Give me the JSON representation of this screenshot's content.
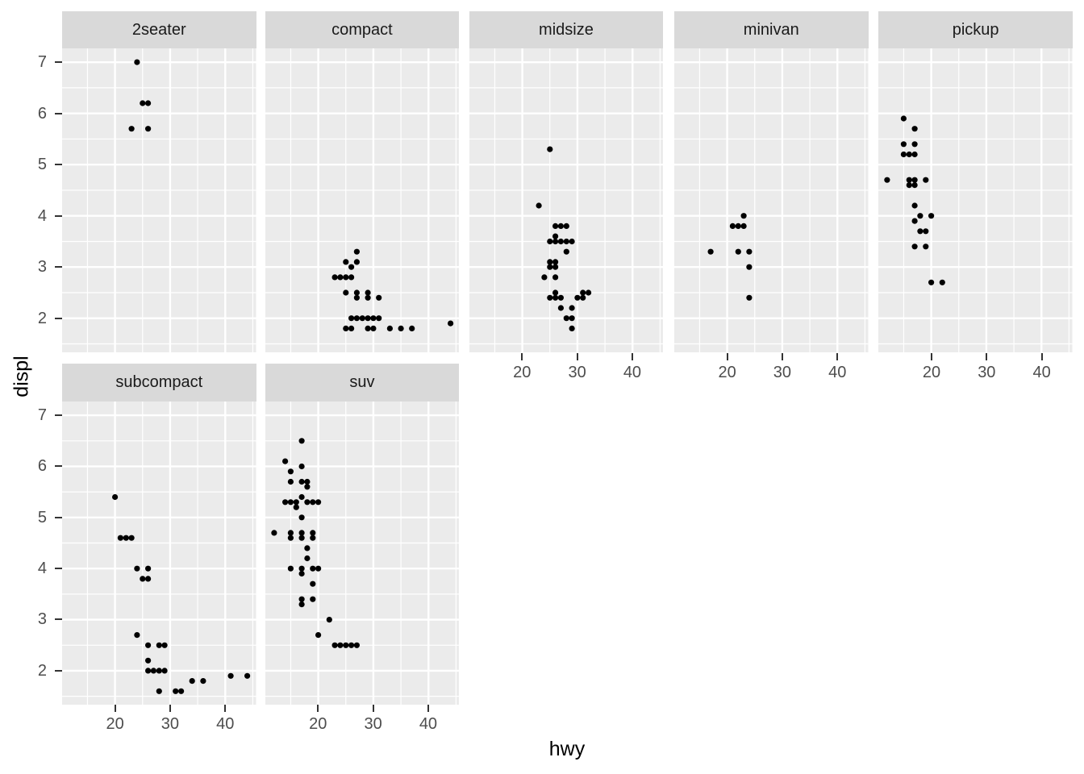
{
  "chart_data": {
    "type": "scatter",
    "title": "",
    "x_variable": "hwy",
    "y_variable": "displ",
    "facet_variable": "class",
    "xlabel": "hwy",
    "ylabel": "displ",
    "x_ticks": [
      20,
      30,
      40
    ],
    "x_minor_ticks": [
      15,
      25,
      35,
      45
    ],
    "y_ticks": [
      7,
      6,
      5,
      4,
      3,
      2
    ],
    "y_minor_ticks": [
      1.5,
      2.5,
      3.5,
      4.5,
      5.5,
      6.5
    ],
    "xlim": [
      10.4,
      45.6
    ],
    "ylim": [
      1.33,
      7.27
    ],
    "grid": "white major and minor gridlines on grey panel",
    "legend": "none",
    "point_radius": 3.6,
    "facets": [
      {
        "label": "2seater",
        "points": [
          [
            24,
            7.0
          ],
          [
            25,
            6.2
          ],
          [
            26,
            6.2
          ],
          [
            23,
            5.7
          ],
          [
            26,
            5.7
          ]
        ]
      },
      {
        "label": "compact",
        "points": [
          [
            27,
            3.3
          ],
          [
            25,
            3.1
          ],
          [
            27,
            3.1
          ],
          [
            26,
            3.0
          ],
          [
            23,
            2.8
          ],
          [
            24,
            2.8
          ],
          [
            25,
            2.8
          ],
          [
            26,
            2.8
          ],
          [
            25,
            2.5
          ],
          [
            27,
            2.5
          ],
          [
            29,
            2.5
          ],
          [
            27,
            2.4
          ],
          [
            29,
            2.4
          ],
          [
            31,
            2.4
          ],
          [
            26,
            2.0
          ],
          [
            27,
            2.0
          ],
          [
            28,
            2.0
          ],
          [
            29,
            2.0
          ],
          [
            30,
            2.0
          ],
          [
            31,
            2.0
          ],
          [
            25,
            1.8
          ],
          [
            26,
            1.8
          ],
          [
            29,
            1.8
          ],
          [
            30,
            1.8
          ],
          [
            33,
            1.8
          ],
          [
            35,
            1.8
          ],
          [
            37,
            1.8
          ],
          [
            44,
            1.9
          ]
        ]
      },
      {
        "label": "midsize",
        "points": [
          [
            25,
            5.3
          ],
          [
            23,
            4.2
          ],
          [
            26,
            3.8
          ],
          [
            27,
            3.8
          ],
          [
            28,
            3.8
          ],
          [
            26,
            3.6
          ],
          [
            25,
            3.5
          ],
          [
            26,
            3.5
          ],
          [
            27,
            3.5
          ],
          [
            28,
            3.5
          ],
          [
            29,
            3.5
          ],
          [
            28,
            3.3
          ],
          [
            25,
            3.1
          ],
          [
            26,
            3.1
          ],
          [
            25,
            3.0
          ],
          [
            26,
            3.0
          ],
          [
            24,
            2.8
          ],
          [
            26,
            2.8
          ],
          [
            26,
            2.5
          ],
          [
            25,
            2.4
          ],
          [
            26,
            2.4
          ],
          [
            27,
            2.4
          ],
          [
            31,
            2.5
          ],
          [
            32,
            2.5
          ],
          [
            30,
            2.4
          ],
          [
            31,
            2.4
          ],
          [
            27,
            2.2
          ],
          [
            29,
            2.2
          ],
          [
            28,
            2.0
          ],
          [
            29,
            2.0
          ],
          [
            29,
            1.8
          ]
        ]
      },
      {
        "label": "minivan",
        "points": [
          [
            23,
            4.0
          ],
          [
            21,
            3.8
          ],
          [
            22,
            3.8
          ],
          [
            23,
            3.8
          ],
          [
            17,
            3.3
          ],
          [
            22,
            3.3
          ],
          [
            24,
            3.3
          ],
          [
            24,
            3.0
          ],
          [
            24,
            2.4
          ]
        ]
      },
      {
        "label": "pickup",
        "points": [
          [
            15,
            5.9
          ],
          [
            17,
            5.7
          ],
          [
            15,
            5.4
          ],
          [
            17,
            5.4
          ],
          [
            15,
            5.2
          ],
          [
            16,
            5.2
          ],
          [
            17,
            5.2
          ],
          [
            12,
            4.7
          ],
          [
            16,
            4.7
          ],
          [
            17,
            4.7
          ],
          [
            19,
            4.7
          ],
          [
            16,
            4.6
          ],
          [
            17,
            4.6
          ],
          [
            17,
            4.2
          ],
          [
            18,
            4.0
          ],
          [
            20,
            4.0
          ],
          [
            17,
            3.9
          ],
          [
            18,
            3.7
          ],
          [
            19,
            3.7
          ],
          [
            17,
            3.4
          ],
          [
            19,
            3.4
          ],
          [
            20,
            2.7
          ],
          [
            22,
            2.7
          ]
        ]
      },
      {
        "label": "subcompact",
        "points": [
          [
            20,
            5.4
          ],
          [
            21,
            4.6
          ],
          [
            22,
            4.6
          ],
          [
            23,
            4.6
          ],
          [
            24,
            4.0
          ],
          [
            26,
            4.0
          ],
          [
            25,
            3.8
          ],
          [
            26,
            3.8
          ],
          [
            24,
            2.7
          ],
          [
            26,
            2.5
          ],
          [
            28,
            2.5
          ],
          [
            29,
            2.5
          ],
          [
            26,
            2.2
          ],
          [
            26,
            2.0
          ],
          [
            27,
            2.0
          ],
          [
            28,
            2.0
          ],
          [
            29,
            2.0
          ],
          [
            34,
            1.8
          ],
          [
            36,
            1.8
          ],
          [
            41,
            1.9
          ],
          [
            44,
            1.9
          ],
          [
            28,
            1.6
          ],
          [
            31,
            1.6
          ],
          [
            32,
            1.6
          ]
        ]
      },
      {
        "label": "suv",
        "points": [
          [
            17,
            6.5
          ],
          [
            14,
            6.1
          ],
          [
            17,
            6.0
          ],
          [
            15,
            5.9
          ],
          [
            15,
            5.7
          ],
          [
            17,
            5.7
          ],
          [
            18,
            5.7
          ],
          [
            18,
            5.6
          ],
          [
            14,
            5.3
          ],
          [
            15,
            5.3
          ],
          [
            16,
            5.3
          ],
          [
            17,
            5.4
          ],
          [
            18,
            5.3
          ],
          [
            19,
            5.3
          ],
          [
            20,
            5.3
          ],
          [
            16,
            5.2
          ],
          [
            17,
            5.0
          ],
          [
            12,
            4.7
          ],
          [
            15,
            4.7
          ],
          [
            15,
            4.6
          ],
          [
            17,
            4.7
          ],
          [
            17,
            4.6
          ],
          [
            19,
            4.7
          ],
          [
            19,
            4.6
          ],
          [
            18,
            4.4
          ],
          [
            18,
            4.2
          ],
          [
            15,
            4.0
          ],
          [
            17,
            4.0
          ],
          [
            17,
            3.9
          ],
          [
            19,
            4.0
          ],
          [
            20,
            4.0
          ],
          [
            19,
            3.7
          ],
          [
            17,
            3.4
          ],
          [
            17,
            3.3
          ],
          [
            19,
            3.4
          ],
          [
            22,
            3.0
          ],
          [
            20,
            2.7
          ],
          [
            23,
            2.5
          ],
          [
            24,
            2.5
          ],
          [
            25,
            2.5
          ],
          [
            26,
            2.5
          ],
          [
            27,
            2.5
          ]
        ]
      }
    ]
  },
  "colors": {
    "background": "#FFFFFF",
    "panel_bg": "#EBEBEB",
    "strip_bg": "#D9D9D9",
    "grid": "#FFFFFF",
    "point": "#000000",
    "tick_label": "#4D4D4D",
    "tick_mark": "#333333",
    "axis_title": "#000000",
    "strip_text": "#1A1A1A"
  }
}
